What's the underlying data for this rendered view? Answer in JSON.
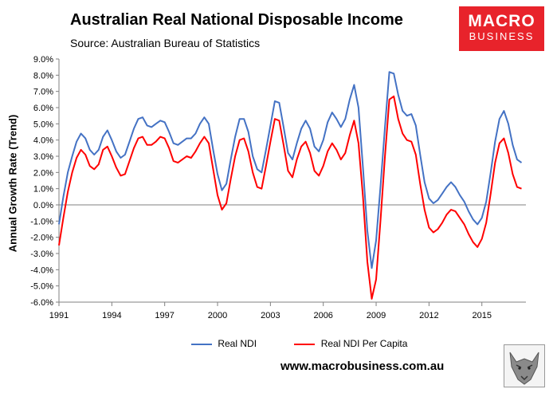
{
  "header": {
    "title": "Australian Real National Disposable Income",
    "source": "Source: Australian Bureau of Statistics"
  },
  "logo": {
    "line1": "MACRO",
    "line2": "BUSINESS",
    "color": "#e8232b"
  },
  "footer": {
    "url": "www.macrobusiness.com.au"
  },
  "chart_data": {
    "type": "line",
    "ylabel": "Annual Growth Rate (Trend)",
    "ylim": [
      -6,
      9
    ],
    "yticks": [
      "9.0%",
      "8.0%",
      "7.0%",
      "6.0%",
      "5.0%",
      "4.0%",
      "3.0%",
      "2.0%",
      "1.0%",
      "0.0%",
      "-1.0%",
      "-2.0%",
      "-3.0%",
      "-4.0%",
      "-5.0%",
      "-6.0%"
    ],
    "xticks": [
      "1991",
      "1994",
      "1997",
      "2000",
      "2003",
      "2006",
      "2009",
      "2012",
      "2015"
    ],
    "xlim": [
      1991.0,
      2017.5
    ],
    "grid": "none",
    "legend_position": "bottom",
    "series": [
      {
        "name": "Real NDI",
        "color": "#4472c4",
        "x": [
          1991.0,
          1991.25,
          1991.5,
          1991.75,
          1992.0,
          1992.25,
          1992.5,
          1992.75,
          1993.0,
          1993.25,
          1993.5,
          1993.75,
          1994.0,
          1994.25,
          1994.5,
          1994.75,
          1995.0,
          1995.25,
          1995.5,
          1995.75,
          1996.0,
          1996.25,
          1996.5,
          1996.75,
          1997.0,
          1997.25,
          1997.5,
          1997.75,
          1998.0,
          1998.25,
          1998.5,
          1998.75,
          1999.0,
          1999.25,
          1999.5,
          1999.75,
          2000.0,
          2000.25,
          2000.5,
          2000.75,
          2001.0,
          2001.25,
          2001.5,
          2001.75,
          2002.0,
          2002.25,
          2002.5,
          2002.75,
          2003.0,
          2003.25,
          2003.5,
          2003.75,
          2004.0,
          2004.25,
          2004.5,
          2004.75,
          2005.0,
          2005.25,
          2005.5,
          2005.75,
          2006.0,
          2006.25,
          2006.5,
          2006.75,
          2007.0,
          2007.25,
          2007.5,
          2007.75,
          2008.0,
          2008.25,
          2008.5,
          2008.75,
          2009.0,
          2009.25,
          2009.5,
          2009.75,
          2010.0,
          2010.25,
          2010.5,
          2010.75,
          2011.0,
          2011.25,
          2011.5,
          2011.75,
          2012.0,
          2012.25,
          2012.5,
          2012.75,
          2013.0,
          2013.25,
          2013.5,
          2013.75,
          2014.0,
          2014.25,
          2014.5,
          2014.75,
          2015.0,
          2015.25,
          2015.5,
          2015.75,
          2016.0,
          2016.25,
          2016.5,
          2016.75,
          2017.0,
          2017.25
        ],
        "values": [
          -1.2,
          0.5,
          2.0,
          3.0,
          3.9,
          4.4,
          4.1,
          3.4,
          3.1,
          3.4,
          4.2,
          4.6,
          4.0,
          3.3,
          2.9,
          3.1,
          3.9,
          4.7,
          5.3,
          5.4,
          4.9,
          4.8,
          5.0,
          5.2,
          5.1,
          4.5,
          3.8,
          3.7,
          3.9,
          4.1,
          4.1,
          4.4,
          5.0,
          5.4,
          5.0,
          3.4,
          1.9,
          0.9,
          1.3,
          2.8,
          4.2,
          5.3,
          5.3,
          4.5,
          3.0,
          2.2,
          2.0,
          3.4,
          4.9,
          6.4,
          6.3,
          4.8,
          3.2,
          2.8,
          3.8,
          4.7,
          5.2,
          4.7,
          3.6,
          3.3,
          4.0,
          5.1,
          5.7,
          5.3,
          4.8,
          5.3,
          6.5,
          7.4,
          6.0,
          2.3,
          -1.6,
          -3.9,
          -2.2,
          1.2,
          4.8,
          8.2,
          8.1,
          6.8,
          5.8,
          5.5,
          5.6,
          4.9,
          3.1,
          1.4,
          0.4,
          0.1,
          0.3,
          0.7,
          1.1,
          1.4,
          1.1,
          0.6,
          0.2,
          -0.4,
          -0.9,
          -1.2,
          -0.8,
          0.2,
          2.0,
          3.9,
          5.3,
          5.8,
          5.0,
          3.7,
          2.8,
          2.6
        ]
      },
      {
        "name": "Real NDI Per Capita",
        "color": "#ff0000",
        "x": [
          1991.0,
          1991.25,
          1991.5,
          1991.75,
          1992.0,
          1992.25,
          1992.5,
          1992.75,
          1993.0,
          1993.25,
          1993.5,
          1993.75,
          1994.0,
          1994.25,
          1994.5,
          1994.75,
          1995.0,
          1995.25,
          1995.5,
          1995.75,
          1996.0,
          1996.25,
          1996.5,
          1996.75,
          1997.0,
          1997.25,
          1997.5,
          1997.75,
          1998.0,
          1998.25,
          1998.5,
          1998.75,
          1999.0,
          1999.25,
          1999.5,
          1999.75,
          2000.0,
          2000.25,
          2000.5,
          2000.75,
          2001.0,
          2001.25,
          2001.5,
          2001.75,
          2002.0,
          2002.25,
          2002.5,
          2002.75,
          2003.0,
          2003.25,
          2003.5,
          2003.75,
          2004.0,
          2004.25,
          2004.5,
          2004.75,
          2005.0,
          2005.25,
          2005.5,
          2005.75,
          2006.0,
          2006.25,
          2006.5,
          2006.75,
          2007.0,
          2007.25,
          2007.5,
          2007.75,
          2008.0,
          2008.25,
          2008.5,
          2008.75,
          2009.0,
          2009.25,
          2009.5,
          2009.75,
          2010.0,
          2010.25,
          2010.5,
          2010.75,
          2011.0,
          2011.25,
          2011.5,
          2011.75,
          2012.0,
          2012.25,
          2012.5,
          2012.75,
          2013.0,
          2013.25,
          2013.5,
          2013.75,
          2014.0,
          2014.25,
          2014.5,
          2014.75,
          2015.0,
          2015.25,
          2015.5,
          2015.75,
          2016.0,
          2016.25,
          2016.5,
          2016.75,
          2017.0,
          2017.25
        ],
        "values": [
          -2.5,
          -0.8,
          0.8,
          2.0,
          2.9,
          3.4,
          3.1,
          2.4,
          2.2,
          2.5,
          3.4,
          3.6,
          3.0,
          2.3,
          1.8,
          1.9,
          2.7,
          3.5,
          4.1,
          4.2,
          3.7,
          3.7,
          3.9,
          4.2,
          4.1,
          3.5,
          2.7,
          2.6,
          2.8,
          3.0,
          2.9,
          3.3,
          3.8,
          4.2,
          3.8,
          2.2,
          0.6,
          -0.3,
          0.1,
          1.6,
          3.0,
          4.0,
          4.1,
          3.3,
          2.0,
          1.1,
          1.0,
          2.4,
          3.9,
          5.3,
          5.2,
          3.7,
          2.1,
          1.7,
          2.8,
          3.6,
          3.9,
          3.2,
          2.1,
          1.8,
          2.4,
          3.3,
          3.8,
          3.4,
          2.8,
          3.2,
          4.3,
          5.2,
          3.8,
          0.5,
          -3.5,
          -5.8,
          -4.6,
          -0.9,
          3.0,
          6.5,
          6.7,
          5.3,
          4.4,
          4.0,
          3.9,
          3.1,
          1.3,
          -0.3,
          -1.4,
          -1.7,
          -1.5,
          -1.1,
          -0.6,
          -0.3,
          -0.4,
          -0.8,
          -1.2,
          -1.8,
          -2.3,
          -2.6,
          -2.1,
          -1.1,
          0.7,
          2.6,
          3.8,
          4.1,
          3.2,
          1.9,
          1.1,
          1.0
        ]
      }
    ]
  }
}
